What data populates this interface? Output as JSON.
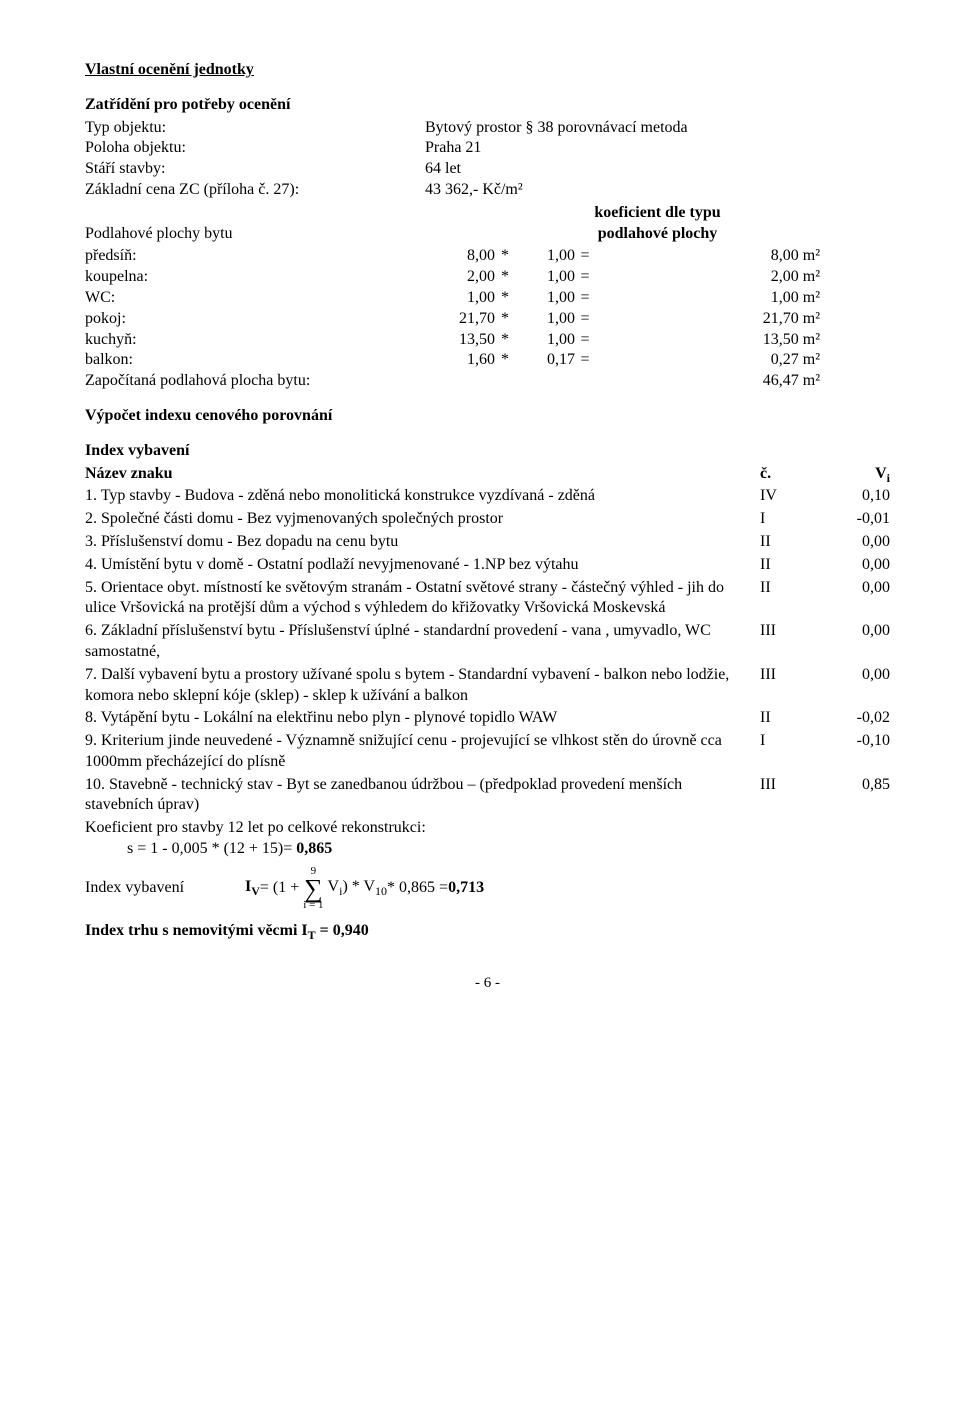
{
  "title": "Vlastní ocenění jednotky",
  "sub1": "Zatřídění pro potřeby ocenění",
  "kv": {
    "typ_objektu_l": "Typ objektu:",
    "typ_objektu_v": "Bytový prostor § 38 porovnávací metoda",
    "poloha_l": "Poloha objektu:",
    "poloha_v": "Praha 21",
    "stari_l": "Stáří stavby:",
    "stari_v": "64 let",
    "zc_l": "Základní cena ZC (příloha č. 27):",
    "zc_v": "43 362,- Kč/m²"
  },
  "floor_label": "Podlahové plochy bytu",
  "floor_coef_1": "koeficient dle typu",
  "floor_coef_2": "podlahové plochy",
  "rooms": [
    {
      "name": "předsíň:",
      "a": "8,00",
      "op1": "*",
      "b": "1,00",
      "op2": "=",
      "res": "8,00 m²"
    },
    {
      "name": "koupelna:",
      "a": "2,00",
      "op1": "*",
      "b": "1,00",
      "op2": "=",
      "res": "2,00 m²"
    },
    {
      "name": "WC:",
      "a": "1,00",
      "op1": "*",
      "b": "1,00",
      "op2": "=",
      "res": "1,00 m²"
    },
    {
      "name": "pokoj:",
      "a": "21,70",
      "op1": "*",
      "b": "1,00",
      "op2": "=",
      "res": "21,70 m²"
    },
    {
      "name": "kuchyň:",
      "a": "13,50",
      "op1": "*",
      "b": "1,00",
      "op2": "=",
      "res": "13,50 m²"
    },
    {
      "name": "balkon:",
      "a": "1,60",
      "op1": "*",
      "b": "0,17",
      "op2": "=",
      "res": "0,27 m²"
    }
  ],
  "floor_total_l": "Započítaná podlahová plocha bytu:",
  "floor_total_v": "46,47 m²",
  "vypocet_h": "Výpočet indexu cenového porovnání",
  "index_vyb_h": "Index vybavení",
  "idx_head_name": "Název znaku",
  "idx_head_c": "č.",
  "idx_head_v_pre": "V",
  "idx_head_v_sub": "i",
  "items": [
    {
      "n": "1. Typ stavby - Budova - zděná nebo monolitická konstrukce vyzdívaná - zděná",
      "c": "IV",
      "v": "0,10"
    },
    {
      "n": "2. Společné části domu - Bez vyjmenovaných společných prostor",
      "c": "I",
      "v": "-0,01"
    },
    {
      "n": "3. Příslušenství domu - Bez dopadu na cenu bytu",
      "c": "II",
      "v": "0,00"
    },
    {
      "n": "4. Umístění bytu v domě - Ostatní podlaží nevyjmenované - 1.NP bez výtahu",
      "c": "II",
      "v": "0,00"
    },
    {
      "n": "5. Orientace obyt. místností ke světovým stranám - Ostatní světové strany - částečný výhled - jih do   ulice Vršovická na protější dům   a východ   s výhledem do křižovatky Vršovická Moskevská",
      "c": "II",
      "v": "0,00"
    },
    {
      "n": "6. Základní příslušenství bytu - Příslušenství úplné - standardní provedení - vana ,  umyvadlo,   WC samostatné,",
      "c": "III",
      "v": "0,00"
    },
    {
      "n": "7. Další vybavení bytu a prostory užívané spolu s bytem - Standardní vybavení - balkon nebo lodžie, komora nebo sklepní kóje (sklep) - sklep k užívání   a balkon",
      "c": "III",
      "v": "0,00"
    },
    {
      "n": "8. Vytápění bytu - Lokální na elektřinu nebo plyn - plynové topidlo WAW",
      "c": "II",
      "v": "-0,02"
    },
    {
      "n": "9. Kriterium jinde neuvedené - Významně snižující cenu - projevující se vlhkost stěn   do úrovně cca 1000mm přecházející do plísně",
      "c": "I",
      "v": "-0,10"
    },
    {
      "n": "10. Stavebně - technický stav - Byt se zanedbanou údržbou – (předpoklad provedení menších stavebních úprav)",
      "c": "III",
      "v": "0,85"
    }
  ],
  "koef_line1": "Koeficient pro stavby 12 let po celkové rekonstrukci:",
  "koef_line2_lhs": "s = 1 - 0,005 * (12 + 15)= ",
  "koef_line2_val": "0,865",
  "iv_lhs": "Index vybavení",
  "iv_eq_pre": "I",
  "iv_eq_sub": "V",
  "iv_eq_mid1": " = (1 + ",
  "sigma_top": "9",
  "sigma_bot": "i = 1",
  "iv_eq_sum_v_pre": " V",
  "iv_eq_sum_v_sub": "i",
  "iv_eq_mid2": ") * V",
  "iv_eq_mid2_sub": "10",
  "iv_eq_mid3": " * 0,865 = ",
  "iv_val": "0,713",
  "it_line_pre": "Index trhu s nemovitými věcmi I",
  "it_line_sub": "T",
  "it_line_post": " = 0,940",
  "page_num": "- 6 -"
}
